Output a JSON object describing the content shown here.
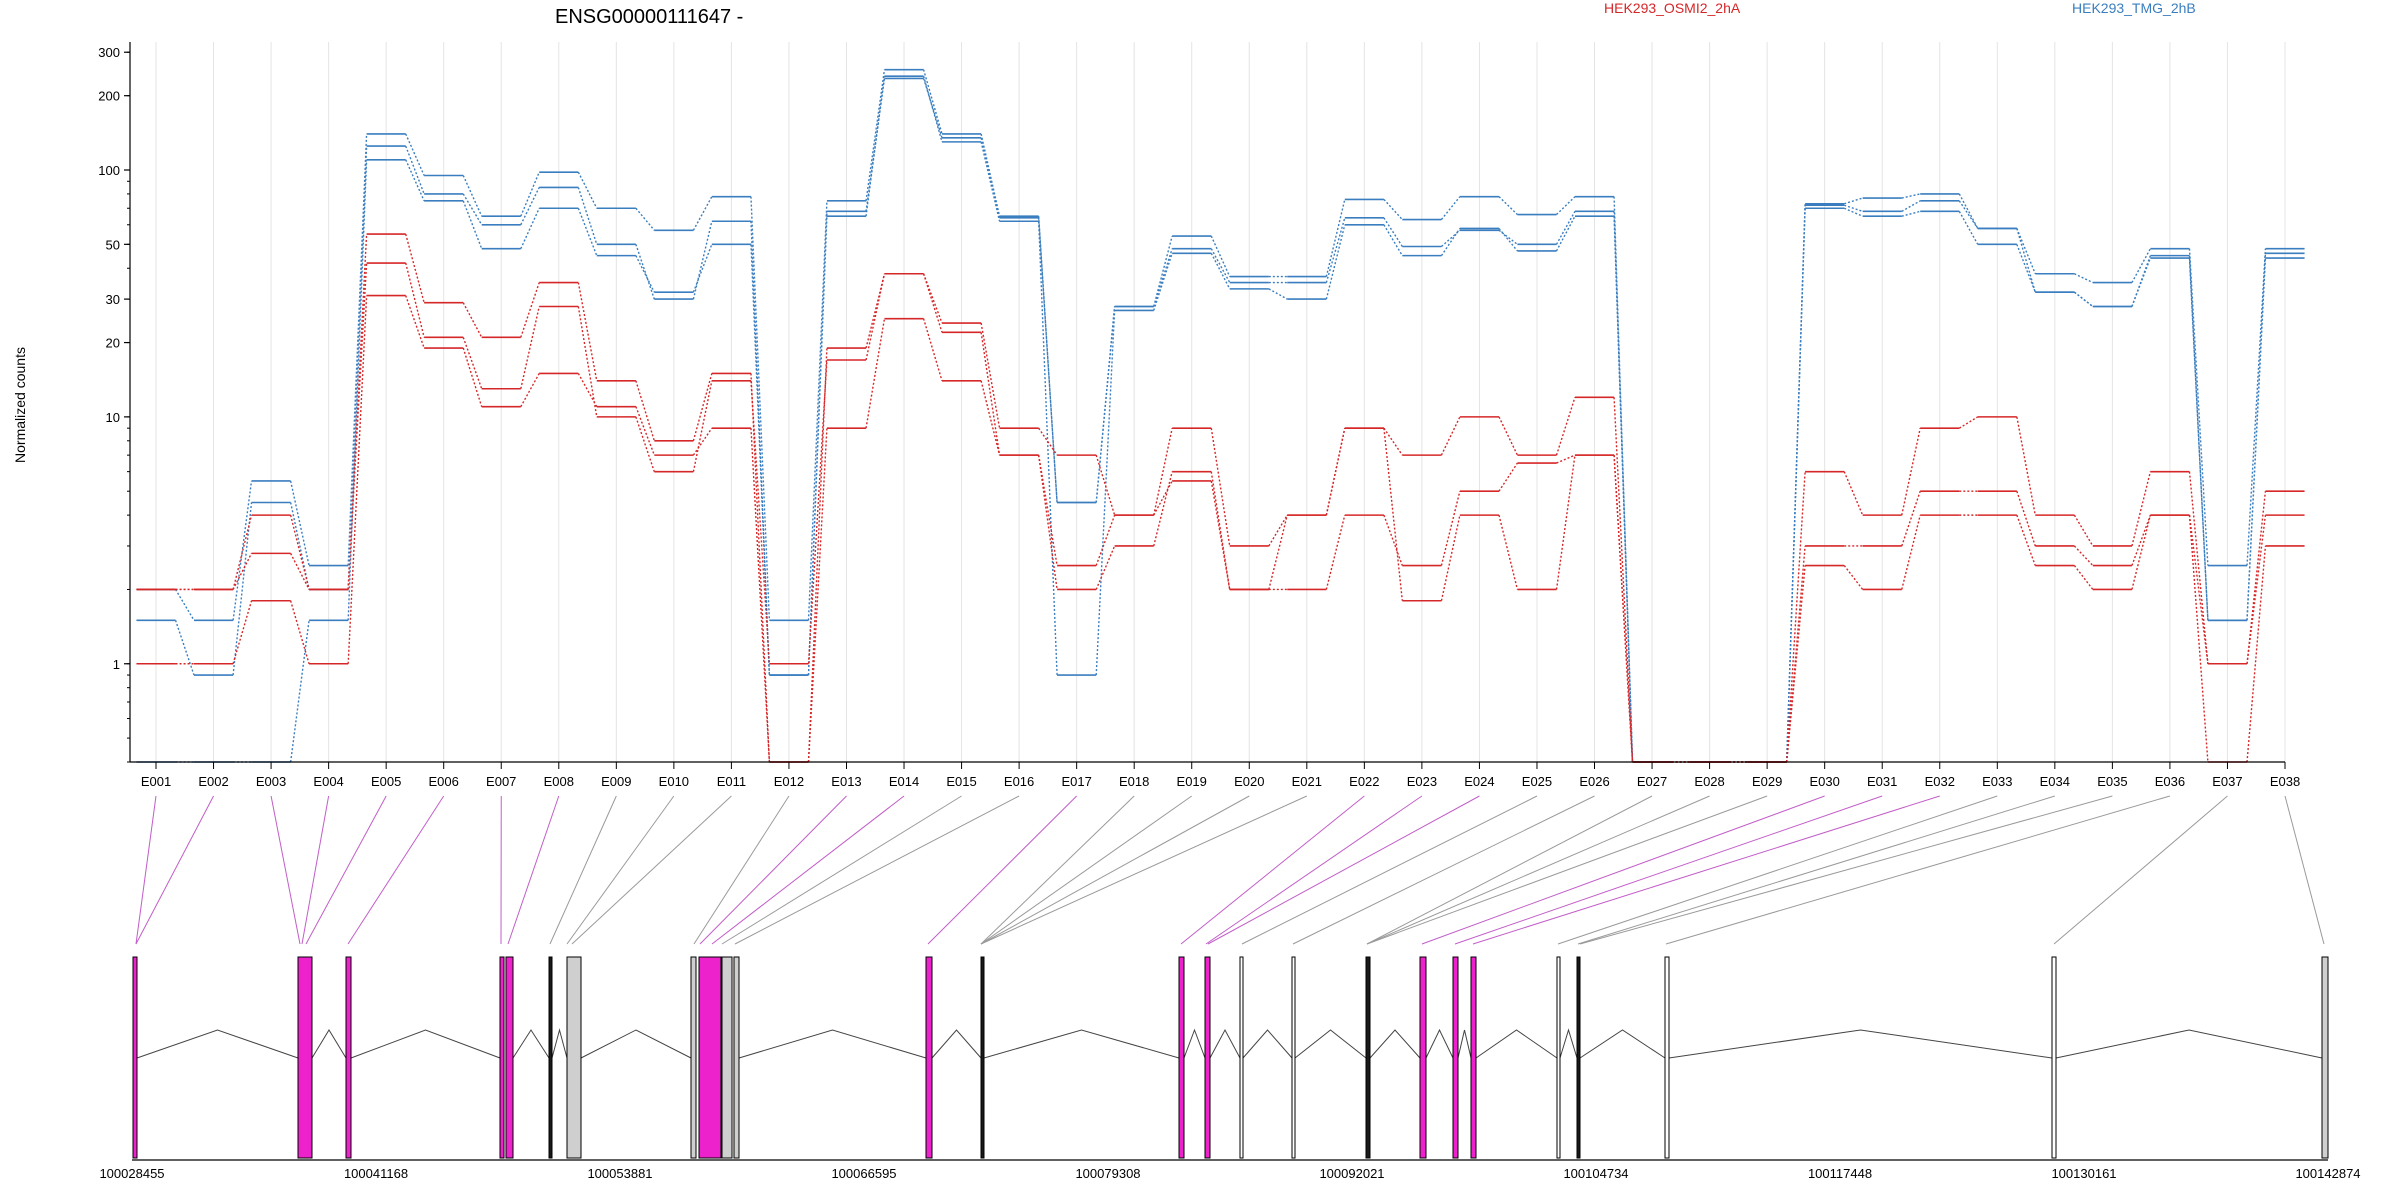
{
  "chart_data": {
    "type": "line",
    "title": "ENSG00000111647 -",
    "ylabel": "Normalized counts",
    "yscale": "log",
    "ylim": [
      0.4,
      330
    ],
    "yticks": [
      {
        "v": 1,
        "label": "1"
      },
      {
        "v": 10,
        "label": "10"
      },
      {
        "v": 20,
        "label": "20"
      },
      {
        "v": 30,
        "label": "30"
      },
      {
        "v": 50,
        "label": "50"
      },
      {
        "v": 100,
        "label": "100"
      },
      {
        "v": 200,
        "label": "200"
      },
      {
        "v": 300,
        "label": "300"
      }
    ],
    "categories": [
      "E001",
      "E002",
      "E003",
      "E004",
      "E005",
      "E006",
      "E007",
      "E008",
      "E009",
      "E010",
      "E011",
      "E012",
      "E013",
      "E014",
      "E015",
      "E016",
      "E017",
      "E018",
      "E019",
      "E020",
      "E021",
      "E022",
      "E023",
      "E024",
      "E025",
      "E026",
      "E027",
      "E028",
      "E029",
      "E030",
      "E031",
      "E032",
      "E033",
      "E034",
      "E035",
      "E036",
      "E037",
      "E038"
    ],
    "legend": [
      {
        "name": "HEK293_OSMI2_2hA",
        "color": "#d62728"
      },
      {
        "name": "HEK293_TMG_2hB",
        "color": "#3a7ebf"
      }
    ],
    "series": [
      {
        "group": "HEK293_TMG_2hB",
        "color": "#3a7ebf",
        "values": [
          0.4,
          0.4,
          0.4,
          1.5,
          110,
          75,
          48,
          70,
          45,
          32,
          50,
          0.9,
          65,
          240,
          130,
          62,
          0.9,
          27,
          46,
          33,
          30,
          60,
          45,
          58,
          47,
          65,
          0.4,
          0.4,
          0.4,
          70,
          65,
          68,
          50,
          32,
          28,
          44,
          1.5,
          44
        ]
      },
      {
        "group": "HEK293_TMG_2hB",
        "color": "#3a7ebf",
        "values": [
          1.5,
          0.9,
          4.5,
          2,
          125,
          80,
          60,
          85,
          50,
          30,
          62,
          0.9,
          68,
          235,
          135,
          64,
          4.5,
          28,
          48,
          35,
          35,
          64,
          49,
          57,
          50,
          68,
          0.4,
          0.4,
          0.4,
          72,
          68,
          75,
          58,
          32,
          28,
          45,
          1.5,
          46
        ]
      },
      {
        "group": "HEK293_TMG_2hB",
        "color": "#3a7ebf",
        "values": [
          2,
          1.5,
          5.5,
          2.5,
          140,
          95,
          65,
          98,
          70,
          57,
          78,
          1.5,
          75,
          255,
          140,
          65,
          4.5,
          28,
          54,
          37,
          37,
          76,
          63,
          78,
          66,
          78,
          0.4,
          0.4,
          0.4,
          73,
          77,
          80,
          58,
          38,
          35,
          48,
          2.5,
          48
        ]
      },
      {
        "group": "HEK293_OSMI2_2hA",
        "color": "#d62728",
        "values": [
          1,
          1,
          1.8,
          1,
          31,
          19,
          11,
          15,
          11,
          7,
          9,
          0.4,
          9,
          25,
          14,
          7,
          2,
          3,
          6,
          2,
          4,
          9,
          1.8,
          4,
          2,
          7,
          0.4,
          0.4,
          0.4,
          2.5,
          2,
          4,
          4,
          2.5,
          2,
          4,
          0.4,
          3
        ]
      },
      {
        "group": "HEK293_OSMI2_2hA",
        "color": "#d62728",
        "values": [
          2,
          2,
          2.8,
          2,
          42,
          21,
          13,
          28,
          10,
          6,
          14,
          1,
          17,
          38,
          22,
          7,
          2.5,
          4,
          5.5,
          2,
          2,
          4,
          2.5,
          5,
          6.5,
          7,
          0.4,
          0.4,
          0.4,
          3,
          3,
          5,
          5,
          3,
          2.5,
          4,
          1,
          4
        ]
      },
      {
        "group": "HEK293_OSMI2_2hA",
        "color": "#d62728",
        "values": [
          2,
          2,
          4,
          2,
          55,
          29,
          21,
          35,
          14,
          8,
          15,
          0.4,
          19,
          38,
          24,
          9,
          7,
          4,
          9,
          3,
          4,
          9,
          7,
          10,
          7,
          12,
          0.4,
          0.4,
          0.4,
          6,
          4,
          9,
          10,
          4,
          3,
          6,
          1,
          5
        ]
      }
    ],
    "gene_model": {
      "coordinate_labels": [
        "100028455",
        "100041168",
        "100053881",
        "100066595",
        "100079308",
        "100092021",
        "100104734",
        "100117448",
        "100130161",
        "100142874"
      ]
    }
  }
}
